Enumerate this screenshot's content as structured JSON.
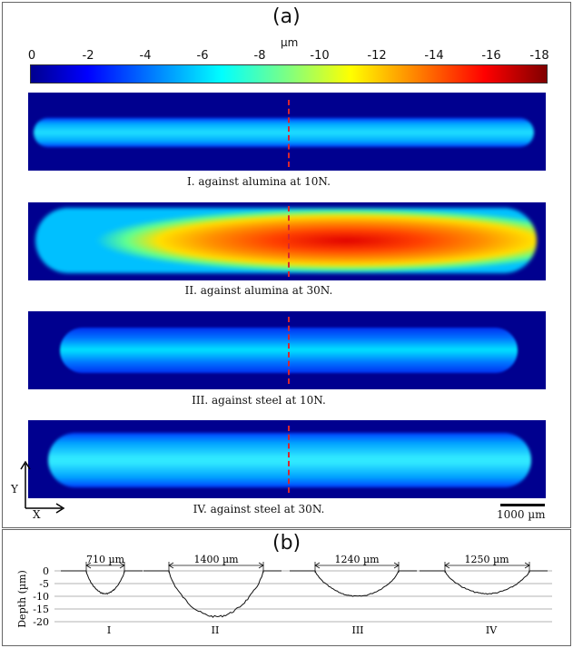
{
  "panel_a": {
    "label": "(a)",
    "colorbar": {
      "unit": "µm",
      "ticks": [
        "0",
        "-2",
        "-4",
        "-6",
        "-8",
        "-10",
        "-12",
        "-14",
        "-16",
        "-18"
      ],
      "range": [
        0,
        -18
      ],
      "colormap": "jet"
    },
    "scans": [
      {
        "caption": "I. against alumina at 10N."
      },
      {
        "caption": "II. against alumina at 30N."
      },
      {
        "caption": "III. against steel at 10N."
      },
      {
        "caption": "IV. against steel at 30N."
      }
    ],
    "axes": {
      "y": "Y",
      "x": "X"
    },
    "scale_bar_label": "1000 µm"
  },
  "panel_b": {
    "label": "(b)",
    "y_axis_label": "Depth (µm)",
    "y_ticks": [
      "0",
      "-5",
      "-10",
      "-15",
      "-20"
    ],
    "profiles": [
      {
        "name": "I",
        "width_label": "710 µm",
        "max_depth": 9
      },
      {
        "name": "II",
        "width_label": "1400 µm",
        "max_depth": 18
      },
      {
        "name": "III",
        "width_label": "1240 µm",
        "max_depth": 10
      },
      {
        "name": "IV",
        "width_label": "1250 µm",
        "max_depth": 9
      }
    ]
  },
  "colors": {
    "background_blue": "#00008f",
    "dash_red": "#d8262f",
    "frame": "#666666"
  }
}
